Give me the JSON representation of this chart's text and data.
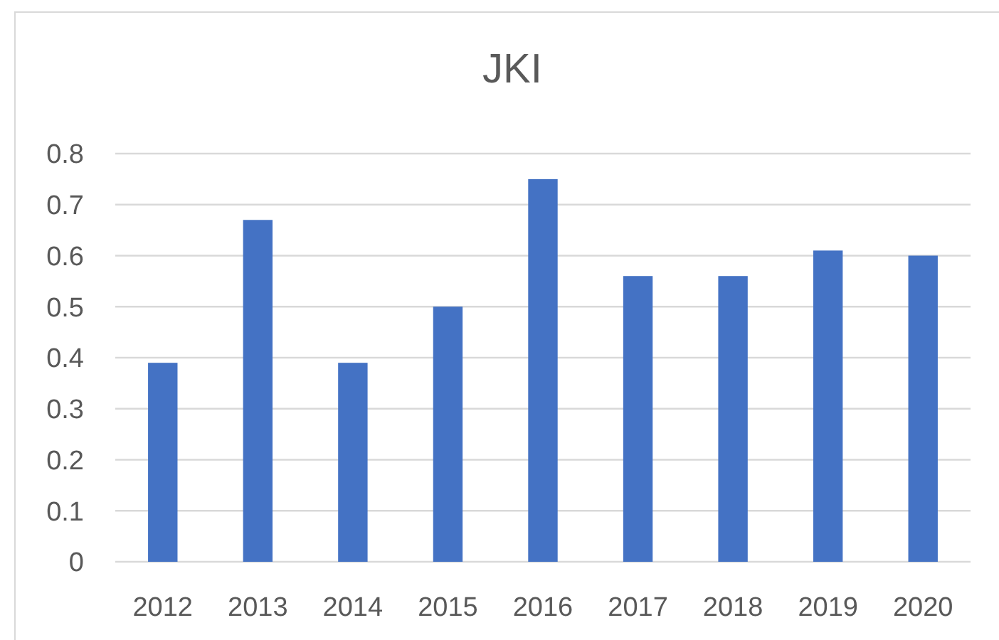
{
  "chart_data": {
    "type": "bar",
    "title": "JKI",
    "categories": [
      "2012",
      "2013",
      "2014",
      "2015",
      "2016",
      "2017",
      "2018",
      "2019",
      "2020"
    ],
    "values": [
      0.39,
      0.67,
      0.39,
      0.5,
      0.75,
      0.56,
      0.56,
      0.61,
      0.6
    ],
    "color": "#4472c4",
    "ylim": [
      0,
      0.8
    ],
    "yticks": [
      0,
      0.1,
      0.2,
      0.3,
      0.4,
      0.5,
      0.6,
      0.7,
      0.8
    ],
    "grid": "y"
  }
}
